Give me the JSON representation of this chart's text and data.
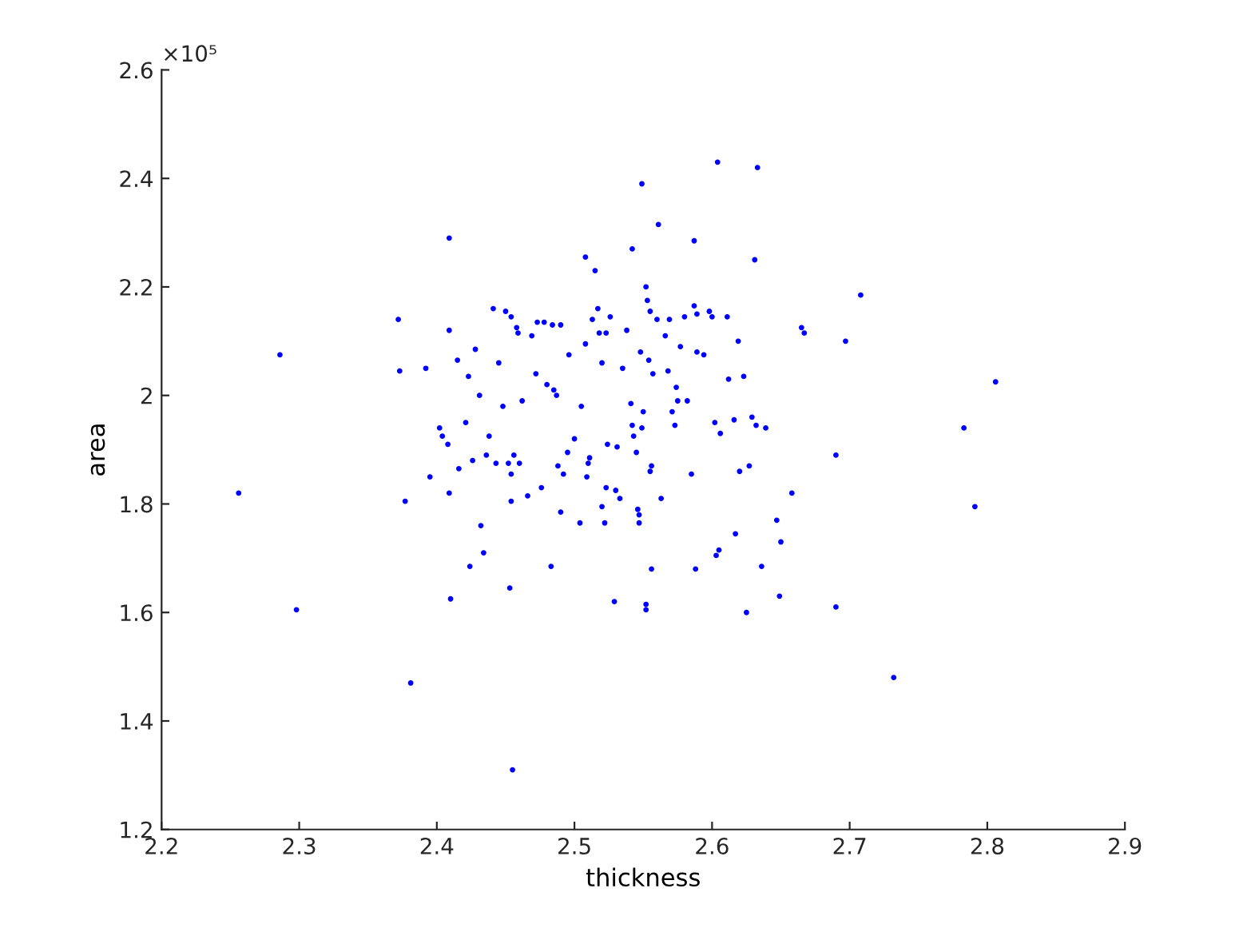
{
  "chart_data": {
    "type": "scatter",
    "xlabel": "thickness",
    "ylabel": "area",
    "annotations": [
      "×10⁵"
    ],
    "marker": "circle",
    "grid": false,
    "xlim": [
      2.2,
      2.9
    ],
    "xticks": [
      2.2,
      2.3,
      2.4,
      2.5,
      2.6,
      2.7,
      2.8,
      2.9
    ],
    "ylim": [
      1.2,
      2.6
    ],
    "yticks": [
      1.2,
      1.4,
      1.6,
      1.8,
      2,
      2.2,
      2.4,
      2.6
    ],
    "series": [
      {
        "color": "#0000ff",
        "x": [
          2.256,
          2.286,
          2.298,
          2.372,
          2.373,
          2.377,
          2.381,
          2.392,
          2.395,
          2.402,
          2.404,
          2.408,
          2.409,
          2.409,
          2.409,
          2.41,
          2.415,
          2.416,
          2.421,
          2.423,
          2.424,
          2.426,
          2.428,
          2.431,
          2.432,
          2.434,
          2.436,
          2.438,
          2.441,
          2.443,
          2.445,
          2.448,
          2.45,
          2.452,
          2.454,
          2.453,
          2.454,
          2.454,
          2.455,
          2.456,
          2.458,
          2.459,
          2.46,
          2.462,
          2.466,
          2.469,
          2.472,
          2.473,
          2.476,
          2.478,
          2.48,
          2.483,
          2.484,
          2.485,
          2.487,
          2.488,
          2.49,
          2.49,
          2.492,
          2.495,
          2.496,
          2.5,
          2.505,
          2.504,
          2.508,
          2.508,
          2.509,
          2.51,
          2.511,
          2.513,
          2.515,
          2.517,
          2.518,
          2.52,
          2.52,
          2.522,
          2.523,
          2.523,
          2.524,
          2.526,
          2.529,
          2.53,
          2.531,
          2.533,
          2.535,
          2.538,
          2.541,
          2.542,
          2.542,
          2.543,
          2.545,
          2.546,
          2.547,
          2.547,
          2.548,
          2.549,
          2.549,
          2.55,
          2.552,
          2.552,
          2.552,
          2.553,
          2.554,
          2.555,
          2.555,
          2.556,
          2.556,
          2.557,
          2.56,
          2.561,
          2.563,
          2.566,
          2.568,
          2.569,
          2.571,
          2.573,
          2.574,
          2.575,
          2.577,
          2.58,
          2.582,
          2.585,
          2.587,
          2.587,
          2.588,
          2.589,
          2.589,
          2.594,
          2.598,
          2.6,
          2.602,
          2.603,
          2.604,
          2.605,
          2.606,
          2.611,
          2.612,
          2.616,
          2.617,
          2.619,
          2.62,
          2.623,
          2.625,
          2.627,
          2.629,
          2.631,
          2.632,
          2.633,
          2.636,
          2.639,
          2.647,
          2.649,
          2.65,
          2.658,
          2.665,
          2.667,
          2.69,
          2.69,
          2.697,
          2.708,
          2.732,
          2.783,
          2.791,
          2.806
        ],
        "values": [
          1.82,
          2.075,
          1.605,
          2.14,
          2.045,
          1.805,
          1.47,
          2.05,
          1.85,
          1.94,
          1.925,
          1.91,
          2.12,
          2.29,
          1.82,
          1.625,
          2.065,
          1.865,
          1.95,
          2.035,
          1.685,
          1.88,
          2.085,
          2.0,
          1.76,
          1.71,
          1.89,
          1.925,
          2.16,
          1.875,
          2.06,
          1.98,
          2.155,
          1.875,
          2.145,
          1.645,
          1.855,
          1.805,
          1.31,
          1.89,
          2.125,
          2.115,
          1.875,
          1.99,
          1.815,
          2.11,
          2.04,
          2.135,
          1.83,
          2.135,
          2.02,
          1.685,
          2.13,
          2.01,
          2.0,
          1.87,
          2.13,
          1.785,
          1.855,
          1.895,
          2.075,
          1.92,
          1.98,
          1.765,
          2.095,
          2.255,
          1.85,
          1.875,
          1.885,
          2.14,
          2.23,
          2.16,
          2.115,
          1.795,
          2.06,
          1.765,
          2.115,
          1.83,
          1.91,
          2.145,
          1.62,
          1.825,
          1.905,
          1.81,
          2.05,
          2.12,
          1.985,
          2.27,
          1.945,
          1.925,
          1.895,
          1.79,
          1.765,
          1.78,
          2.08,
          2.39,
          1.94,
          1.97,
          2.2,
          1.615,
          1.605,
          2.175,
          2.065,
          2.155,
          1.86,
          1.87,
          1.68,
          2.04,
          2.14,
          2.315,
          1.81,
          2.11,
          2.045,
          2.14,
          1.97,
          1.945,
          2.015,
          1.99,
          2.09,
          2.145,
          1.99,
          1.855,
          2.285,
          2.165,
          1.68,
          2.15,
          2.08,
          2.075,
          2.155,
          2.145,
          1.95,
          1.705,
          2.43,
          1.715,
          1.93,
          2.145,
          2.03,
          1.955,
          1.745,
          2.1,
          1.86,
          2.035,
          1.6,
          1.87,
          1.96,
          2.25,
          1.945,
          2.42,
          1.685,
          1.94,
          1.77,
          1.63,
          1.73,
          1.82,
          2.125,
          2.115,
          1.89,
          1.61,
          2.1,
          2.185,
          1.48,
          1.94,
          1.795,
          2.025
        ]
      }
    ]
  }
}
